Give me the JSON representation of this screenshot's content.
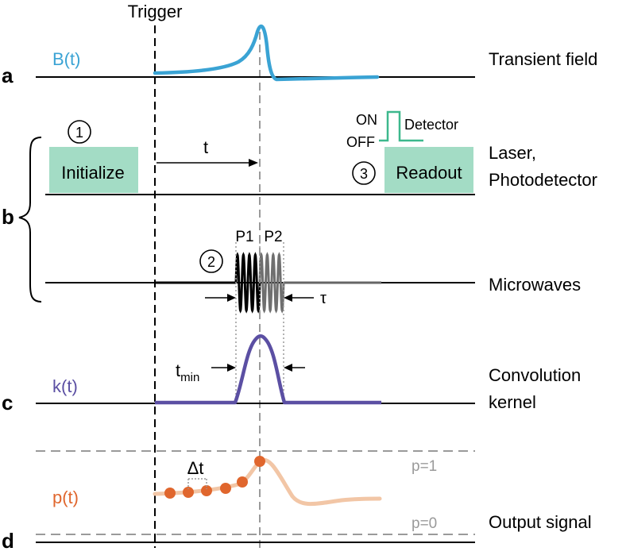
{
  "header": {
    "trigger": "Trigger"
  },
  "panels": {
    "a": {
      "letter": "a",
      "signal_label": "B(t)",
      "right_label": "Transient field"
    },
    "b": {
      "letter": "b",
      "right_label_line1": "Laser,",
      "right_label_line2": "Photodetector",
      "right_label_micro": "Microwaves",
      "step1_number": "1",
      "step1_label": "Initialize",
      "step3_number": "3",
      "step3_label": "Readout",
      "step2_number": "2",
      "t_label": "t",
      "p1_label": "P1",
      "p2_label": "P2",
      "tau_label": "τ",
      "on_label": "ON",
      "off_label": "OFF",
      "detector_label": "Detector"
    },
    "c": {
      "letter": "c",
      "signal_label": "k(t)",
      "right_label_line1": "Convolution",
      "right_label_line2": "kernel",
      "tmin_main": "t",
      "tmin_sub": "min"
    },
    "d": {
      "letter": "d",
      "signal_label": "p(t)",
      "right_label": "Output signal",
      "p1_level": "p=1",
      "p0_level": "p=0",
      "dt_label": "Δt"
    }
  },
  "colors": {
    "transient_field": "#3aa3d4",
    "kernel": "#5b4fa3",
    "output_dots": "#e0662d",
    "output_curve": "#f2c6a6",
    "step_box": "#a3dcc5",
    "detector_trace": "#3db88d",
    "dashed_gray": "#9a9a9a"
  }
}
